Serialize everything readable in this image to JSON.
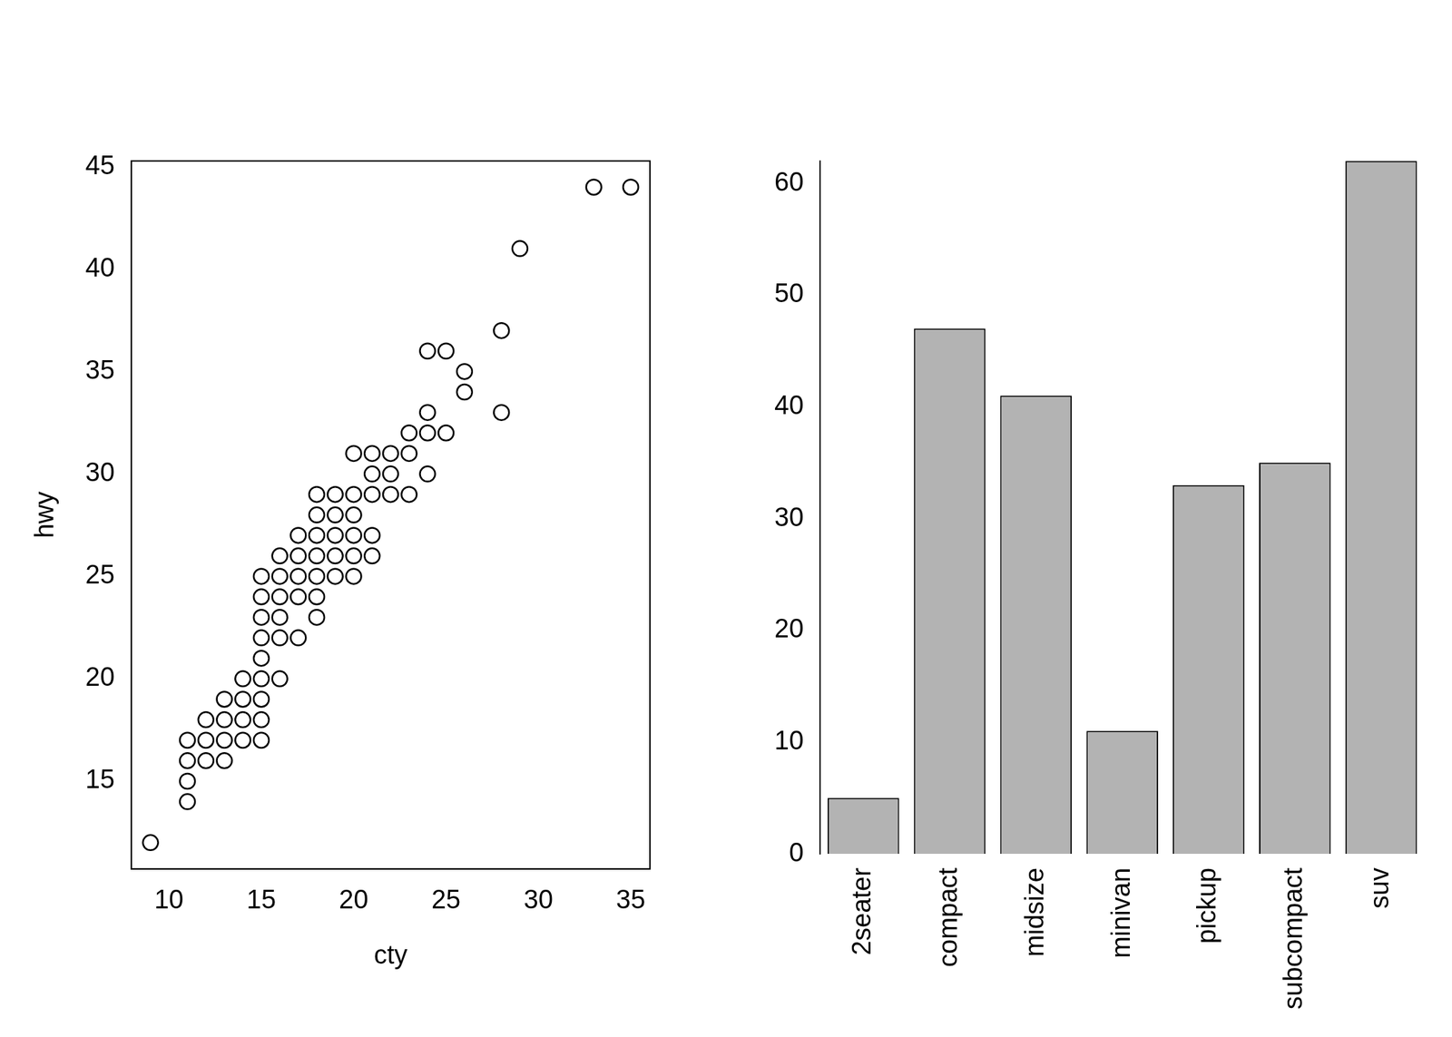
{
  "chart_data": [
    {
      "type": "scatter",
      "x_label": "cty",
      "y_label": "hwy",
      "marker": "circle",
      "color": "#000000",
      "grid": false,
      "xlim": [
        7.96,
        36.04
      ],
      "xticks": [
        10,
        15,
        20,
        25,
        30,
        35
      ],
      "ylim": [
        10.72,
        45.28
      ],
      "yticks": [
        15,
        20,
        25,
        30,
        35,
        40,
        45
      ],
      "x": [
        9,
        11,
        11,
        11,
        11,
        12,
        12,
        12,
        13,
        13,
        13,
        13,
        14,
        14,
        14,
        14,
        15,
        15,
        15,
        15,
        15,
        15,
        15,
        15,
        15,
        16,
        16,
        16,
        16,
        16,
        16,
        17,
        17,
        17,
        17,
        17,
        18,
        18,
        18,
        18,
        18,
        18,
        18,
        19,
        19,
        19,
        19,
        19,
        20,
        20,
        20,
        20,
        20,
        20,
        21,
        21,
        21,
        21,
        21,
        22,
        22,
        22,
        23,
        23,
        23,
        24,
        24,
        24,
        24,
        25,
        25,
        26,
        26,
        28,
        28,
        29,
        33,
        35
      ],
      "values": [
        12,
        14,
        15,
        16,
        17,
        16,
        17,
        18,
        16,
        17,
        18,
        19,
        17,
        18,
        19,
        20,
        17,
        18,
        19,
        20,
        21,
        22,
        23,
        24,
        25,
        20,
        22,
        23,
        24,
        25,
        26,
        22,
        24,
        25,
        26,
        27,
        23,
        24,
        25,
        26,
        27,
        28,
        29,
        25,
        26,
        27,
        28,
        29,
        25,
        26,
        27,
        28,
        29,
        31,
        26,
        27,
        29,
        30,
        31,
        29,
        30,
        31,
        29,
        31,
        32,
        30,
        32,
        33,
        36,
        32,
        36,
        34,
        35,
        33,
        37,
        41,
        44,
        44
      ]
    },
    {
      "type": "bar",
      "color": "#b3b3b3",
      "grid": false,
      "categories": [
        "2seater",
        "compact",
        "midsize",
        "minivan",
        "pickup",
        "subcompact",
        "suv"
      ],
      "values": [
        5,
        47,
        41,
        11,
        33,
        35,
        62
      ],
      "ylim": [
        0,
        62
      ],
      "yticks": [
        0,
        10,
        20,
        30,
        40,
        50,
        60
      ]
    }
  ]
}
